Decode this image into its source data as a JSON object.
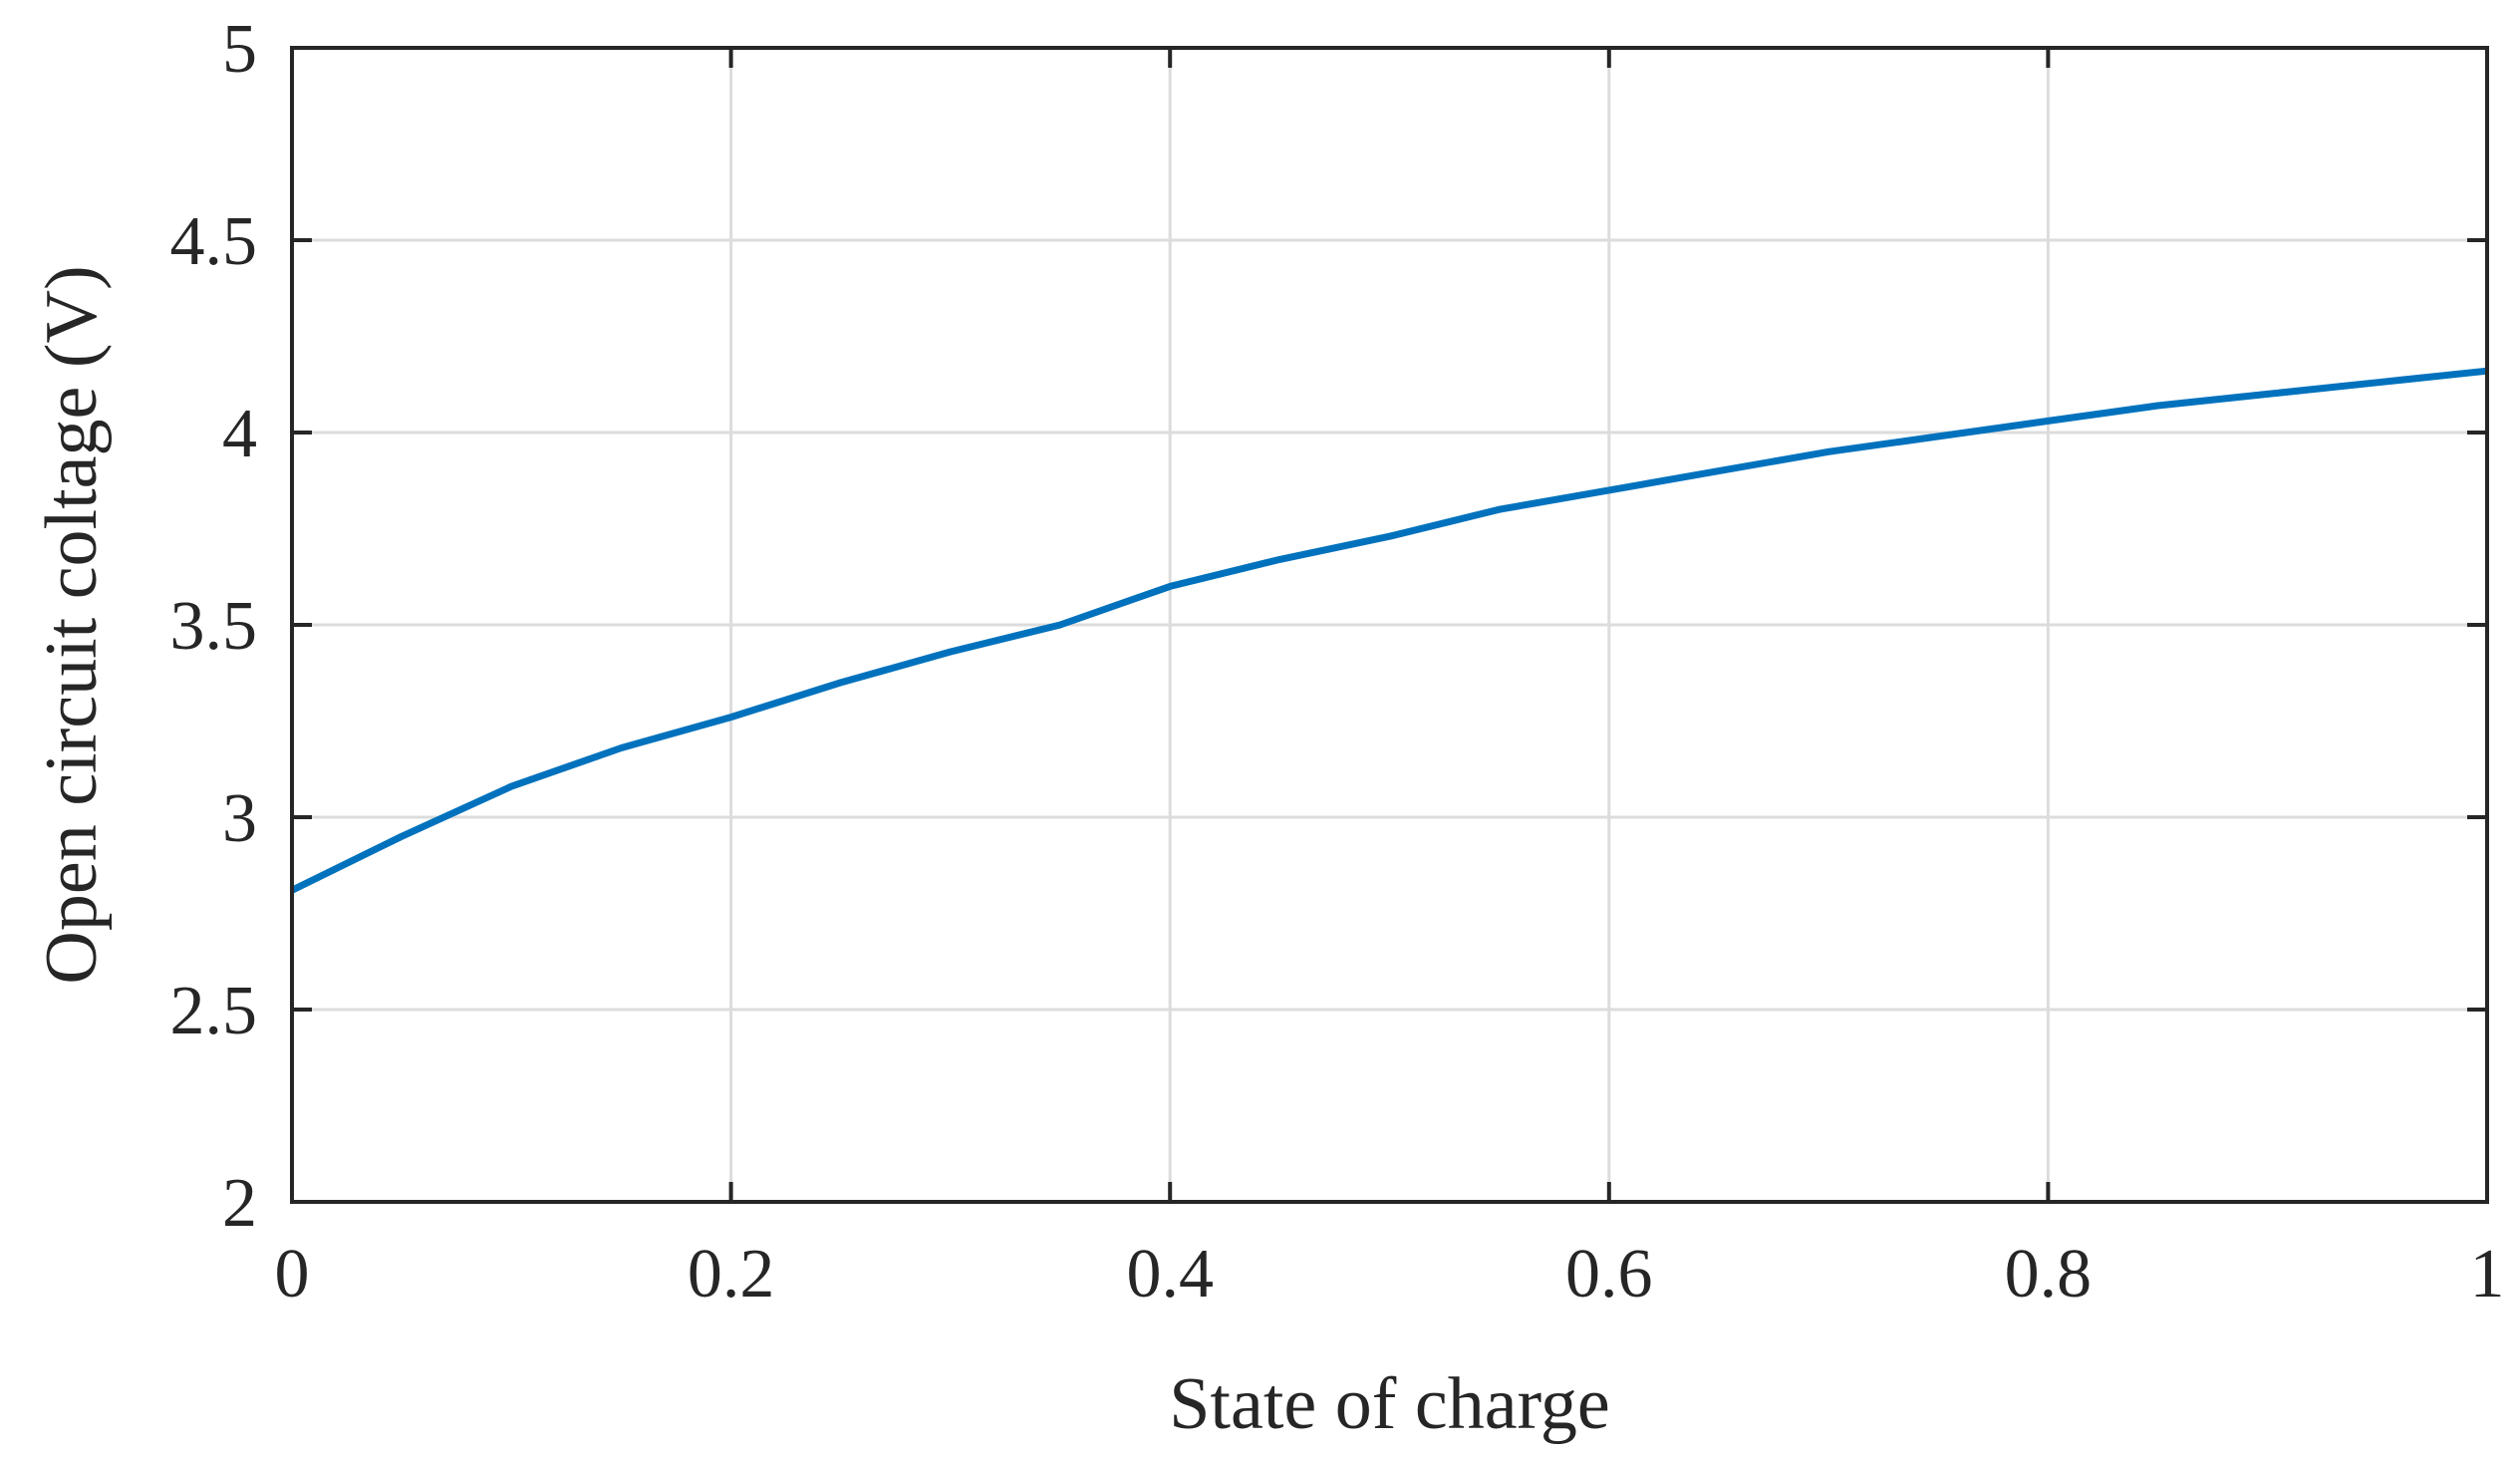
{
  "chart_data": {
    "type": "line",
    "title": "",
    "xlabel": "State of charge",
    "ylabel": "Open circuit coltage (V)",
    "xlim": [
      0,
      1
    ],
    "ylim": [
      2,
      5
    ],
    "xticks": [
      0,
      0.2,
      0.4,
      0.6,
      0.8,
      1
    ],
    "xtick_labels": [
      "0",
      "0.2",
      "0.4",
      "0.6",
      "0.8",
      "1"
    ],
    "yticks": [
      2,
      2.5,
      3,
      3.5,
      4,
      4.5,
      5
    ],
    "ytick_labels": [
      "2",
      "2.5",
      "3",
      "3.5",
      "4",
      "4.5",
      "5"
    ],
    "grid": true,
    "series": [
      {
        "color": "#0072bd",
        "x": [
          0,
          0.05,
          0.1,
          0.15,
          0.2,
          0.25,
          0.3,
          0.35,
          0.4,
          0.45,
          0.5,
          0.55,
          0.6,
          0.65,
          0.7,
          0.75,
          0.8,
          0.85,
          0.9,
          0.95,
          1
        ],
        "y": [
          2.81,
          2.95,
          3.08,
          3.18,
          3.26,
          3.35,
          3.43,
          3.5,
          3.6,
          3.67,
          3.73,
          3.8,
          3.85,
          3.9,
          3.95,
          3.99,
          4.03,
          4.07,
          4.1,
          4.13,
          4.16
        ]
      }
    ]
  }
}
